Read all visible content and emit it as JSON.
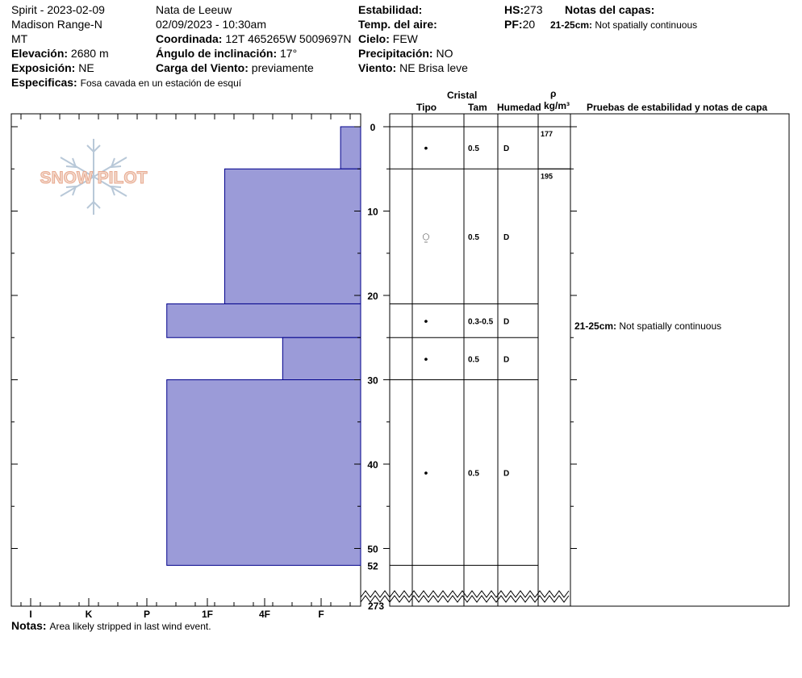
{
  "header": {
    "observer_line1": "Spirit - 2023-02-09",
    "observer_line2": "Madison Range-N",
    "observer_line3": "MT",
    "elevation_label": "Elevación:",
    "elevation_value": "2680 m",
    "exposure_label": "Exposición:",
    "exposure_value": "NE",
    "specifics_label": "Especificas:",
    "specifics_value": "Fosa cavada en un estación de esquí",
    "author": "Nata de Leeuw",
    "datetime": "02/09/2023 - 10:30am",
    "coord_label": "Coordinada:",
    "coord_value": "12T 465265W 5009697N",
    "slope_label": "Ángulo de inclinación:",
    "slope_value": "17°",
    "wind_load_label": "Carga del Viento:",
    "wind_load_value": "previamente",
    "stability_label": "Estabilidad:",
    "stability_value": "",
    "air_temp_label": "Temp. del aire:",
    "air_temp_value": "",
    "sky_label": "Cielo:",
    "sky_value": "FEW",
    "precip_label": "Precipitación:",
    "precip_value": "NO",
    "wind_label": "Viento:",
    "wind_value": "NE Brisa leve",
    "hs_label": "HS:",
    "hs_value": "273",
    "pf_label": "PF:",
    "pf_value": "20",
    "layer_notes_label": "Notas del capas:",
    "layer_note_depth": "21-25cm:",
    "layer_note_text": "Not spatially continuous"
  },
  "column_headers": {
    "crystal": "Cristal",
    "type": "Tipo",
    "size": "Tam",
    "humidity": "Humedad",
    "rho": "ρ",
    "density_unit": "kg/m³",
    "tests": "Pruebas de estabilidad y notas de capa"
  },
  "test_notes": [
    {
      "depth_label": "21-25cm:",
      "text": "Not spatially continuous"
    }
  ],
  "notes": {
    "label": "Notas:",
    "text": "Area likely stripped in last wind event."
  },
  "logo": {
    "text": "SNOW PILOT"
  },
  "colors": {
    "hardness_fill": "#9b9bd8",
    "hardness_stroke": "#00008b"
  },
  "chart_data": {
    "type": "snow-profile",
    "depth_axis_ticks": [
      0,
      10,
      20,
      30,
      40,
      50,
      52
    ],
    "depth_bottom_label": "273",
    "depth_range": [
      0,
      52
    ],
    "hardness_categories": [
      "I",
      "K",
      "P",
      "1F",
      "4F",
      "F"
    ],
    "layers": [
      {
        "top": 0,
        "bottom": 5,
        "hardness": "F+",
        "hardness_index": 5.35,
        "grain_symbol": "•",
        "size": "0.5",
        "moisture": "D",
        "density": "177"
      },
      {
        "top": 5,
        "bottom": 21,
        "hardness": "1F+",
        "hardness_index": 3.35,
        "grain_symbol": "⍜",
        "size": "0.5",
        "moisture": "D",
        "density": "195"
      },
      {
        "top": 21,
        "bottom": 25,
        "hardness": "P",
        "hardness_index": 2.35,
        "grain_symbol": "•",
        "size": "0.3-0.5",
        "moisture": "D",
        "density": ""
      },
      {
        "top": 25,
        "bottom": 30,
        "hardness": "4F+",
        "hardness_index": 4.35,
        "grain_symbol": "•",
        "size": "0.5",
        "moisture": "D",
        "density": ""
      },
      {
        "top": 30,
        "bottom": 52,
        "hardness": "P",
        "hardness_index": 2.35,
        "grain_symbol": "•",
        "size": "0.5",
        "moisture": "D",
        "density": ""
      }
    ]
  }
}
